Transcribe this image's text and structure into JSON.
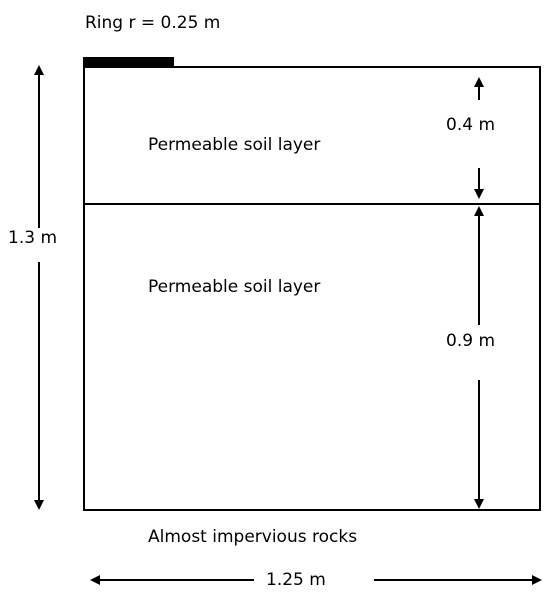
{
  "ring_label": "Ring r = 0.25 m",
  "upper_layer_label": "Permeable soil layer",
  "lower_layer_label": "Permeable soil layer",
  "upper_thickness_label": "0.4 m",
  "lower_thickness_label": "0.9 m",
  "total_height_label": "1.3 m",
  "width_label": "1.25 m",
  "bottom_label": "Almost impervious rocks",
  "colors": {
    "ink": "#000000",
    "background": "#ffffff"
  }
}
